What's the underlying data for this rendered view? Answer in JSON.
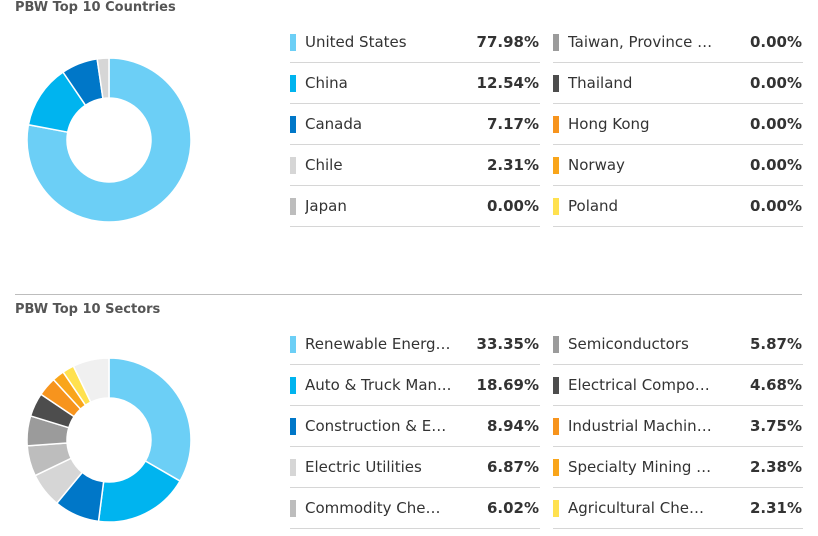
{
  "countries": {
    "title": "PBW Top 10 Countries",
    "chart_data": {
      "type": "pie",
      "title": "PBW Top 10 Countries",
      "categories": [
        "United States",
        "China",
        "Canada",
        "Chile",
        "Japan",
        "Taiwan, Province o...",
        "Thailand",
        "Hong Kong",
        "Norway",
        "Poland"
      ],
      "values": [
        77.98,
        12.54,
        7.17,
        2.31,
        0.0,
        0.0,
        0.0,
        0.0,
        0.0,
        0.0
      ],
      "value_labels": [
        "77.98%",
        "12.54%",
        "7.17%",
        "2.31%",
        "0.00%",
        "0.00%",
        "0.00%",
        "0.00%",
        "0.00%",
        "0.00%"
      ],
      "colors": [
        "#6ccff6",
        "#00b4ef",
        "#0077c8",
        "#d6d6d6",
        "#bdbdbd",
        "#9b9b9b",
        "#4d4d4d",
        "#f7941d",
        "#f9a51a",
        "#ffe14f"
      ],
      "legend_position": "right"
    }
  },
  "sectors": {
    "title": "PBW Top 10 Sectors",
    "chart_data": {
      "type": "pie",
      "title": "PBW Top 10 Sectors",
      "categories": [
        "Renewable Energy...",
        "Auto & Truck Man...",
        "Construction & En...",
        "Electric Utilities",
        "Commodity Chemi...",
        "Semiconductors",
        "Electrical Compon...",
        "Industrial Machine...",
        "Specialty Mining &...",
        "Agricultural Chemi..."
      ],
      "values": [
        33.35,
        18.69,
        8.94,
        6.87,
        6.02,
        5.87,
        4.68,
        3.75,
        2.38,
        2.31
      ],
      "value_labels": [
        "33.35%",
        "18.69%",
        "8.94%",
        "6.87%",
        "6.02%",
        "5.87%",
        "4.68%",
        "3.75%",
        "2.38%",
        "2.31%"
      ],
      "colors": [
        "#6ccff6",
        "#00b4ef",
        "#0077c8",
        "#d6d6d6",
        "#bdbdbd",
        "#9b9b9b",
        "#4d4d4d",
        "#f7941d",
        "#f9a51a",
        "#ffe14f"
      ],
      "remainder_color": "#f0f0f0",
      "legend_position": "right"
    }
  }
}
